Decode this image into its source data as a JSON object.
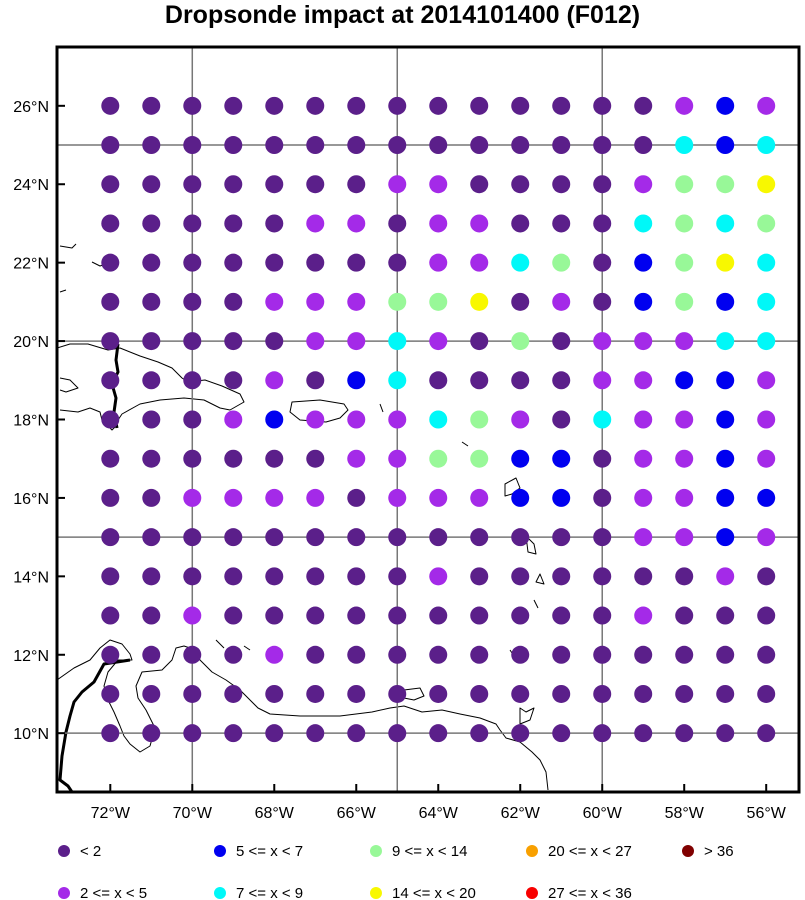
{
  "title": "Dropsonde impact at 2014101400 (F012)",
  "chart_data": {
    "type": "scatter",
    "title": "Dropsonde impact at 2014101400 (F012)",
    "x_ticks": [
      "72°W",
      "70°W",
      "68°W",
      "66°W",
      "64°W",
      "62°W",
      "60°W",
      "58°W",
      "56°W"
    ],
    "y_ticks": [
      "26°N",
      "24°N",
      "22°N",
      "20°N",
      "18°N",
      "16°N",
      "14°N",
      "12°N",
      "10°N"
    ],
    "lon_range": [
      -73.3,
      -55.2
    ],
    "lat_range": [
      8.5,
      27.5
    ],
    "gridlines_lon": [
      -70,
      -65,
      -60,
      -55
    ],
    "gridlines_lat": [
      25,
      20,
      15,
      10
    ],
    "grid_lons": [
      -72,
      -71,
      -70,
      -69,
      -68,
      -67,
      -66,
      -65,
      -64,
      -63,
      -62,
      -61,
      -60,
      -59,
      -58,
      -57,
      -56
    ],
    "grid_lats": [
      26,
      25,
      24,
      23,
      22,
      21,
      20,
      19,
      18,
      17,
      16,
      15,
      14,
      13,
      12,
      11,
      10
    ],
    "categories": [
      {
        "label": "<  2",
        "color": "#5b1f8a"
      },
      {
        "label": "2 <= x <  5",
        "color": "#a42ae8"
      },
      {
        "label": "5 <= x <  7",
        "color": "#0000f0"
      },
      {
        "label": "7 <= x <  9",
        "color": "#00f8f8"
      },
      {
        "label": "9 <= x < 14",
        "color": "#98f898"
      },
      {
        "label": "14 <= x < 20",
        "color": "#f8f800"
      },
      {
        "label": "20 <= x < 27",
        "color": "#f8a000"
      },
      {
        "label": "27 <= x < 36",
        "color": "#f80000"
      },
      {
        "label": "> 36",
        "color": "#800000"
      }
    ],
    "legend_placement": "bottom",
    "category_rows": [
      "00000000000000121",
      "00000000000000323",
      "00000001100001445",
      "00000110110003434",
      "00000000113402453",
      "00001114450102423",
      "00000113104011133",
      "00001023000011221",
      "00012111341031121",
      "00000011442201121",
      "00111101112201122",
      "00000000000001121",
      "00000000100000010",
      "00100000000001000",
      "00001000000000000",
      "00000000000000000",
      "00000000000000000"
    ]
  }
}
